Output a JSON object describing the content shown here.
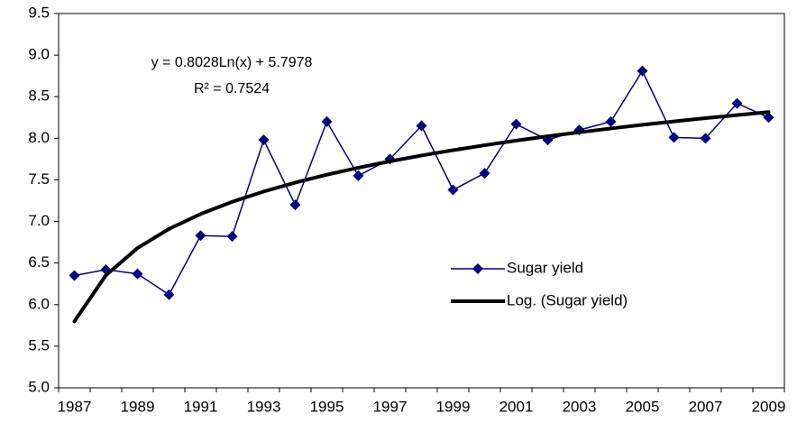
{
  "chart_data": {
    "type": "line",
    "categories": [
      "1987",
      null,
      "1989",
      null,
      "1991",
      null,
      "1993",
      null,
      "1995",
      null,
      "1997",
      null,
      "1999",
      null,
      "2001",
      null,
      "2003",
      null,
      "2005",
      null,
      "2007",
      null,
      "2009"
    ],
    "series": [
      {
        "name": "Sugar yield",
        "color": "#000080",
        "marker": "diamond",
        "values": [
          6.35,
          6.42,
          6.37,
          6.12,
          6.83,
          6.82,
          7.98,
          7.2,
          8.2,
          7.55,
          7.75,
          8.15,
          7.38,
          7.58,
          8.17,
          7.98,
          8.1,
          8.2,
          8.81,
          8.01,
          8.0,
          8.42,
          8.25
        ]
      },
      {
        "name": "Log. (Sugar yield)",
        "color": "#000000",
        "marker": "none",
        "values": [
          5.798,
          6.354,
          6.68,
          6.911,
          7.09,
          7.236,
          7.36,
          7.467,
          7.562,
          7.646,
          7.723,
          7.793,
          7.857,
          7.916,
          7.972,
          8.024,
          8.072,
          8.118,
          8.162,
          8.203,
          8.242,
          8.279,
          8.315
        ]
      }
    ],
    "ylim": [
      5,
      9.5
    ],
    "yticks": [
      {
        "value": 5,
        "label": "5.0"
      },
      {
        "value": 5.5,
        "label": "5.5"
      },
      {
        "value": 6,
        "label": "6.0"
      },
      {
        "value": 6.5,
        "label": "6.5"
      },
      {
        "value": 7,
        "label": "7.0"
      },
      {
        "value": 7.5,
        "label": "7.5"
      },
      {
        "value": 8,
        "label": "8.0"
      },
      {
        "value": 8.5,
        "label": "8.5"
      },
      {
        "value": 9,
        "label": "9.0"
      },
      {
        "value": 9.5,
        "label": "9.5"
      }
    ],
    "grid": false,
    "legend": "center-right",
    "annotations": [
      "y = 0.8028Ln(x) + 5.7978",
      "R² = 0.7524"
    ]
  }
}
